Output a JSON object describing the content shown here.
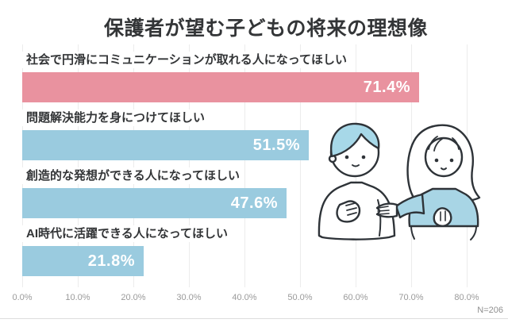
{
  "title": "保護者が望む子どもの将来の理想像",
  "n_label": "N=206",
  "illustration": "two-people-talking",
  "colors": {
    "accent_pink": "#E9929F",
    "accent_blue": "#9ACBDF",
    "grid": "#ECECEC",
    "title_text": "#333537",
    "axis_text": "#9A9A9A",
    "value_text": "#FFFFFF",
    "illustration_outline": "#2E3338",
    "illustration_hair_blue": "#A7D8E8",
    "illustration_sweater_blue": "#A8D5E5"
  },
  "chart_data": {
    "type": "bar",
    "orientation": "horizontal",
    "title": "保護者が望む子どもの将来の理想像",
    "categories": [
      "社会で円滑にコミュニケーションが取れる人になってほしい",
      "問題解決能力を身につけてほしい",
      "創造的な発想ができる人になってほしい",
      "AI時代に活躍できる人になってほしい"
    ],
    "values": [
      71.4,
      51.5,
      47.6,
      21.8
    ],
    "value_labels": [
      "71.4%",
      "51.5%",
      "47.6%",
      "21.8%"
    ],
    "bar_colors": [
      "#E9929F",
      "#9ACBDF",
      "#9ACBDF",
      "#9ACBDF"
    ],
    "xlim": [
      0,
      80
    ],
    "x_ticks": [
      "0.0%",
      "10.0%",
      "20.0%",
      "30.0%",
      "40.0%",
      "50.0%",
      "60.0%",
      "70.0%",
      "80.0%"
    ],
    "grid": true,
    "legend": false,
    "sample_note": "N=206"
  }
}
